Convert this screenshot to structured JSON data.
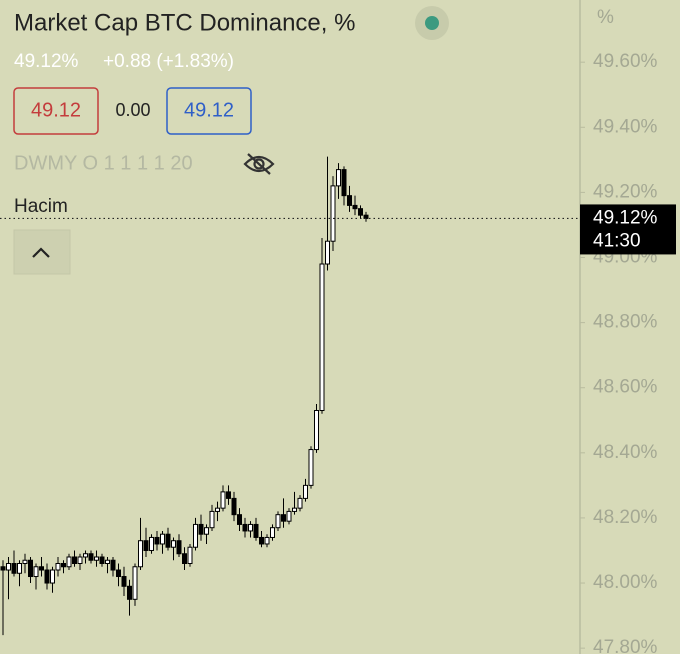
{
  "chart_data": {
    "type": "candlestick",
    "title": "Market Cap BTC Dominance, %",
    "y_unit": "%",
    "ylim": [
      47.782,
      49.791
    ],
    "yticks": [
      {
        "value": 49.6,
        "label": "49.60%"
      },
      {
        "value": 49.4,
        "label": "49.40%"
      },
      {
        "value": 49.2,
        "label": "49.20%"
      },
      {
        "value": 49.0,
        "label": "49.00%"
      },
      {
        "value": 48.8,
        "label": "48.80%"
      },
      {
        "value": 48.6,
        "label": "48.60%"
      },
      {
        "value": 48.4,
        "label": "48.40%"
      },
      {
        "value": 48.2,
        "label": "48.20%"
      },
      {
        "value": 48.0,
        "label": "48.00%"
      },
      {
        "value": 47.8,
        "label": "47.80%"
      }
    ],
    "up_color": "#ffffff",
    "down_color": "#000000",
    "last_price": {
      "value": 49.12,
      "label": "49.12%"
    },
    "countdown": "41:30",
    "open": [
      48.05,
      48.04,
      48.06,
      48.03,
      48.06,
      48.07,
      48.02,
      48.05,
      48.04,
      48.0,
      48.04,
      48.06,
      48.05,
      48.08,
      48.06,
      48.08,
      48.09,
      48.07,
      48.08,
      48.06,
      48.07,
      48.04,
      48.02,
      47.99,
      47.95,
      48.05,
      48.13,
      48.1,
      48.14,
      48.12,
      48.15,
      48.11,
      48.13,
      48.09,
      48.06,
      48.11,
      48.18,
      48.15,
      48.17,
      48.22,
      48.23,
      48.28,
      48.26,
      48.21,
      48.18,
      48.16,
      48.18,
      48.14,
      48.12,
      48.14,
      48.17,
      48.21,
      48.19,
      48.22,
      48.23,
      48.26,
      48.3,
      48.41,
      48.53,
      48.98,
      49.05,
      49.22,
      49.27,
      49.19,
      49.16,
      49.15,
      49.13
    ],
    "high": [
      48.07,
      48.08,
      48.1,
      48.07,
      48.09,
      48.08,
      48.06,
      48.08,
      48.06,
      48.05,
      48.08,
      48.07,
      48.09,
      48.1,
      48.09,
      48.1,
      48.1,
      48.1,
      48.09,
      48.08,
      48.08,
      48.06,
      48.05,
      48.01,
      48.06,
      48.2,
      48.17,
      48.15,
      48.16,
      48.16,
      48.17,
      48.14,
      48.15,
      48.11,
      48.12,
      48.2,
      48.21,
      48.18,
      48.24,
      48.25,
      48.3,
      48.3,
      48.28,
      48.23,
      48.2,
      48.19,
      48.2,
      48.16,
      48.15,
      48.18,
      48.22,
      48.26,
      48.23,
      48.28,
      48.27,
      48.32,
      48.42,
      48.55,
      49.06,
      49.31,
      49.25,
      49.29,
      49.28,
      49.22,
      49.19,
      49.16,
      49.14
    ],
    "low": [
      47.84,
      47.95,
      48.02,
      47.99,
      48.03,
      48.0,
      47.98,
      48.02,
      47.98,
      47.97,
      48.02,
      48.03,
      48.04,
      48.05,
      48.04,
      48.06,
      48.06,
      48.05,
      48.05,
      48.03,
      48.02,
      47.99,
      47.96,
      47.9,
      47.93,
      48.04,
      48.08,
      48.09,
      48.1,
      48.09,
      48.1,
      48.07,
      48.08,
      48.04,
      48.05,
      48.1,
      48.13,
      48.12,
      48.16,
      48.19,
      48.22,
      48.24,
      48.19,
      48.16,
      48.14,
      48.14,
      48.13,
      48.11,
      48.11,
      48.13,
      48.16,
      48.17,
      48.18,
      48.21,
      48.22,
      48.25,
      48.29,
      48.4,
      48.52,
      48.96,
      49.02,
      49.18,
      49.16,
      49.14,
      49.13,
      49.12,
      49.11
    ],
    "close": [
      48.04,
      48.06,
      48.03,
      48.06,
      48.07,
      48.02,
      48.05,
      48.04,
      48.0,
      48.04,
      48.06,
      48.05,
      48.08,
      48.06,
      48.08,
      48.09,
      48.07,
      48.08,
      48.06,
      48.07,
      48.04,
      48.02,
      47.99,
      47.95,
      48.05,
      48.13,
      48.1,
      48.14,
      48.12,
      48.15,
      48.11,
      48.13,
      48.09,
      48.06,
      48.11,
      48.18,
      48.15,
      48.17,
      48.22,
      48.23,
      48.28,
      48.26,
      48.21,
      48.18,
      48.16,
      48.18,
      48.14,
      48.12,
      48.14,
      48.17,
      48.21,
      48.19,
      48.22,
      48.23,
      48.26,
      48.3,
      48.41,
      48.53,
      48.98,
      49.05,
      49.22,
      49.27,
      49.19,
      49.16,
      49.15,
      49.13,
      49.12
    ]
  },
  "header": {
    "last": "49.12%",
    "change": "+0.88 (+1.83%)",
    "bid": "49.12",
    "spread": "0.00",
    "ask": "49.12",
    "intervals": "DWMY O 1 1 1 1 20",
    "volume_label": "Hacim"
  }
}
